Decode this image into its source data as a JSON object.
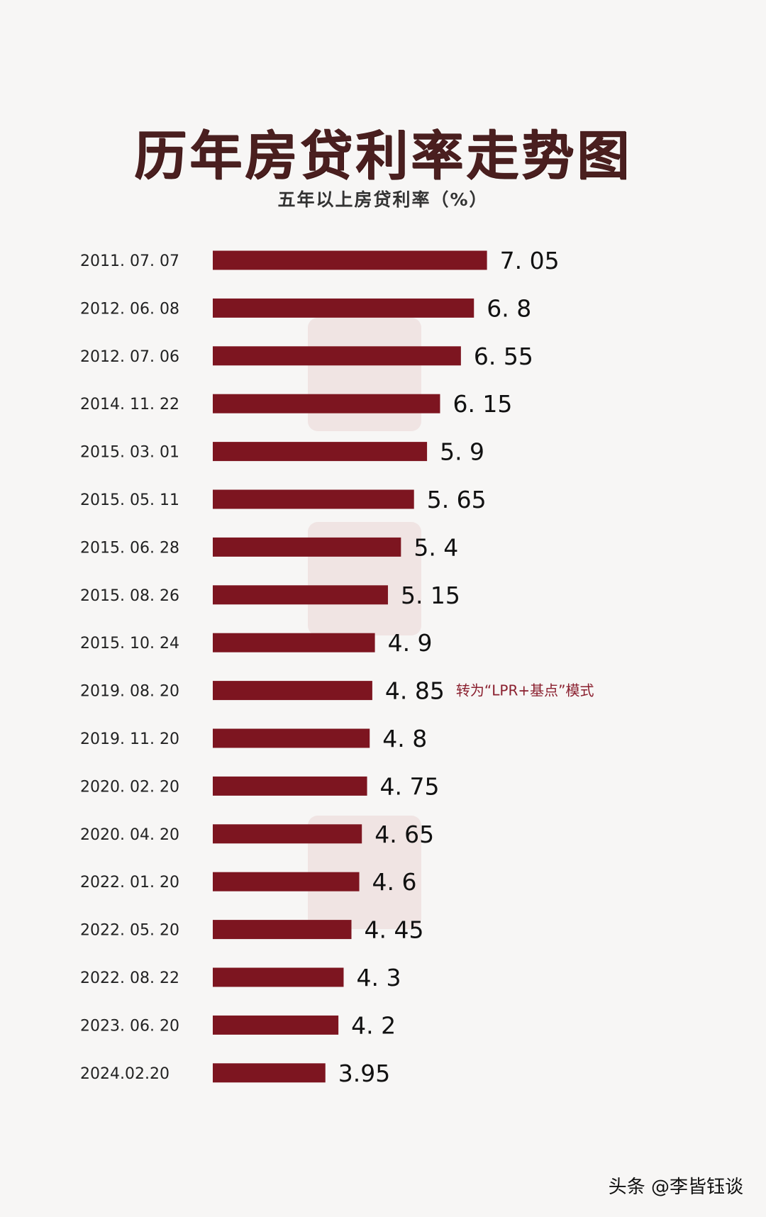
{
  "title": "历年房贷利率走势图",
  "subtitle": "五年以上房贷利率（%）",
  "note": "转为“LPR+基点”模式",
  "footer": "头条 @李皆钰谈",
  "colors": {
    "bar": "#7d1520",
    "background": "#f7f6f5",
    "title": "#4a1f1f"
  },
  "chart_data": {
    "type": "bar",
    "orientation": "horizontal",
    "title": "历年房贷利率走势图",
    "subtitle": "五年以上房贷利率（%）",
    "categories": [
      "2011. 07. 07",
      "2012. 06. 08",
      "2012. 07. 06",
      "2014. 11. 22",
      "2015. 03. 01",
      "2015. 05. 11",
      "2015. 06. 28",
      "2015. 08. 26",
      "2015. 10. 24",
      "2019. 08. 20",
      "2019. 11. 20",
      "2020. 02. 20",
      "2020. 04. 20",
      "2022. 01. 20",
      "2022. 05. 20",
      "2022. 08. 22",
      "2023. 06. 20",
      "2024.02.20"
    ],
    "values": [
      7.05,
      6.8,
      6.55,
      6.15,
      5.9,
      5.65,
      5.4,
      5.15,
      4.9,
      4.85,
      4.8,
      4.75,
      4.65,
      4.6,
      4.45,
      4.3,
      4.2,
      3.95
    ],
    "value_labels": [
      "7. 05",
      "6. 8",
      "6. 55",
      "6. 15",
      "5. 9",
      "5. 65",
      "5. 4",
      "5. 15",
      "4. 9",
      "4. 85",
      "4. 8",
      "4. 75",
      "4. 65",
      "4. 6",
      "4. 45",
      "4. 3",
      "4. 2",
      "3.95"
    ],
    "annotations": [
      {
        "category": "2019. 08. 20",
        "text": "转为“LPR+基点”模式"
      }
    ],
    "grid": false,
    "legend": "none"
  }
}
